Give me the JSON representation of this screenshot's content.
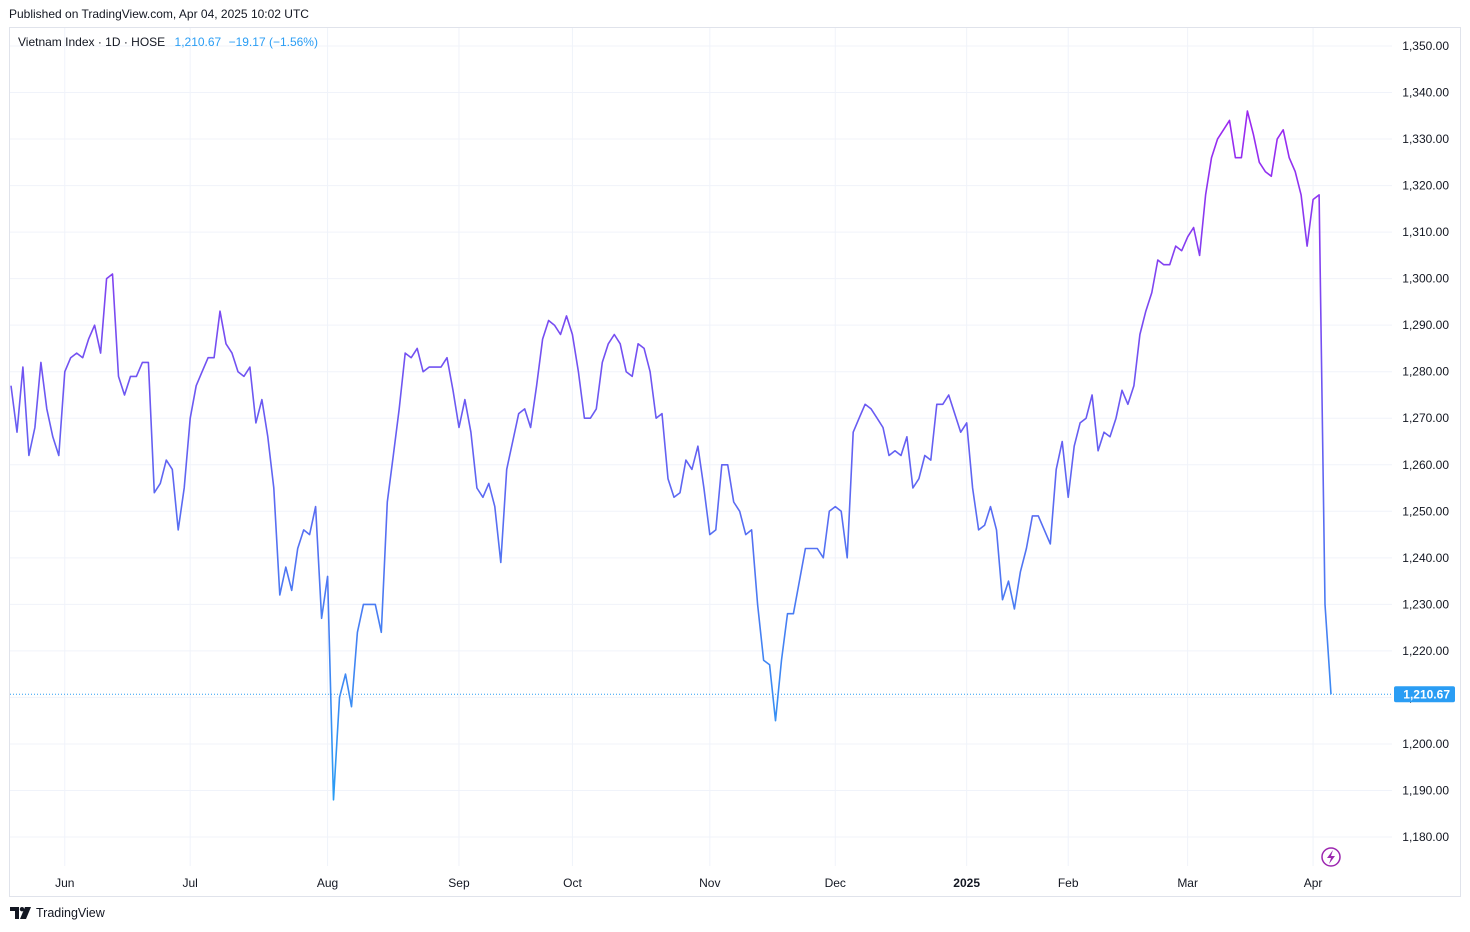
{
  "header": {
    "published": "Published on TradingView.com, Apr 04, 2025 10:02 UTC"
  },
  "legend": {
    "symbol": "Vietnam Index · 1D · HOSE",
    "price": "1,210.67",
    "change": "−19.17 (−1.56%)"
  },
  "footer": {
    "brand": "TradingView",
    "logo_icon": "tradingview-logo-icon"
  },
  "colors": {
    "line_start": "#2a9df4",
    "line_end": "#9c27f0",
    "last_price": "#2a9df4",
    "grid": "#f0f3fa"
  },
  "chart_data": {
    "type": "line",
    "title": "Vietnam Index · 1D · HOSE",
    "ylim": [
      1175,
      1355
    ],
    "yticks": [
      1180,
      1190,
      1200,
      1210,
      1220,
      1230,
      1240,
      1250,
      1260,
      1270,
      1280,
      1290,
      1300,
      1310,
      1320,
      1330,
      1340,
      1350
    ],
    "ytick_labels": [
      "1,180.00",
      "1,190.00",
      "1,200.00",
      "1,210.00",
      "1,220.00",
      "1,230.00",
      "1,240.00",
      "1,250.00",
      "1,260.00",
      "1,270.00",
      "1,280.00",
      "1,290.00",
      "1,300.00",
      "1,310.00",
      "1,320.00",
      "1,330.00",
      "1,340.00",
      "1,350.00"
    ],
    "xticks": [
      {
        "label": "Jun",
        "index": 9,
        "bold": false
      },
      {
        "label": "Jul",
        "index": 30,
        "bold": false
      },
      {
        "label": "Aug",
        "index": 53,
        "bold": false
      },
      {
        "label": "Sep",
        "index": 75,
        "bold": false
      },
      {
        "label": "Oct",
        "index": 94,
        "bold": false
      },
      {
        "label": "Nov",
        "index": 117,
        "bold": false
      },
      {
        "label": "Dec",
        "index": 138,
        "bold": false
      },
      {
        "label": "2025",
        "index": 160,
        "bold": true
      },
      {
        "label": "Feb",
        "index": 177,
        "bold": false
      },
      {
        "label": "Mar",
        "index": 197,
        "bold": false
      },
      {
        "label": "Apr",
        "index": 218,
        "bold": false
      }
    ],
    "last_price": 1210.67,
    "last_price_label": "1,210.67",
    "values": [
      1277,
      1267,
      1281,
      1262,
      1268,
      1282,
      1272,
      1266,
      1262,
      1280,
      1283,
      1284,
      1283,
      1287,
      1290,
      1284,
      1300,
      1301,
      1279,
      1275,
      1279,
      1279,
      1282,
      1282,
      1254,
      1256,
      1261,
      1259,
      1246,
      1255,
      1270,
      1277,
      1280,
      1283,
      1283,
      1293,
      1286,
      1284,
      1280,
      1279,
      1281,
      1269,
      1274,
      1266,
      1255,
      1232,
      1238,
      1233,
      1242,
      1246,
      1245,
      1251,
      1227,
      1236,
      1188,
      1210,
      1215,
      1208,
      1224,
      1230,
      1230,
      1230,
      1224,
      1252,
      1262,
      1272,
      1284,
      1283,
      1285,
      1280,
      1281,
      1281,
      1281,
      1283,
      1276,
      1268,
      1274,
      1267,
      1255,
      1253,
      1256,
      1251,
      1239,
      1259,
      1265,
      1271,
      1272,
      1268,
      1277,
      1287,
      1291,
      1290,
      1288,
      1292,
      1288,
      1280,
      1270,
      1270,
      1272,
      1282,
      1286,
      1288,
      1286,
      1280,
      1279,
      1286,
      1285,
      1280,
      1270,
      1271,
      1257,
      1253,
      1254,
      1261,
      1259,
      1264,
      1255,
      1245,
      1246,
      1260,
      1260,
      1252,
      1250,
      1245,
      1246,
      1230,
      1218,
      1217,
      1205,
      1218,
      1228,
      1228,
      1235,
      1242,
      1242,
      1242,
      1240,
      1250,
      1251,
      1250,
      1240,
      1267,
      1270,
      1273,
      1272,
      1270,
      1268,
      1262,
      1263,
      1262,
      1266,
      1255,
      1257,
      1262,
      1261,
      1273,
      1273,
      1275,
      1271,
      1267,
      1269,
      1255,
      1246,
      1247,
      1251,
      1246,
      1231,
      1235,
      1229,
      1237,
      1242,
      1249,
      1249,
      1246,
      1243,
      1259,
      1265,
      1253,
      1264,
      1269,
      1270,
      1275,
      1263,
      1267,
      1266,
      1270,
      1276,
      1273,
      1277,
      1288,
      1293,
      1297,
      1304,
      1303,
      1303,
      1307,
      1306,
      1309,
      1311,
      1305,
      1318,
      1326,
      1330,
      1332,
      1334,
      1326,
      1326,
      1336,
      1331,
      1325,
      1323,
      1322,
      1330,
      1332,
      1326,
      1323,
      1318,
      1307,
      1317,
      1318,
      1230,
      1210.67
    ]
  }
}
